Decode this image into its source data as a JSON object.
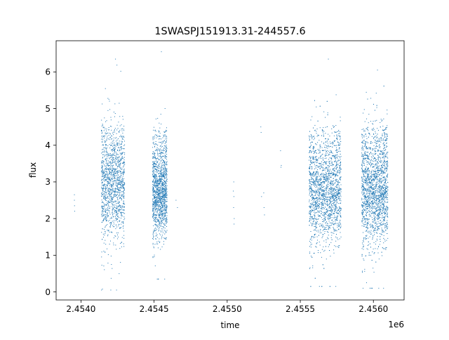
{
  "chart_data": {
    "type": "scatter",
    "title": "1SWASPJ151913.31-244557.6",
    "xlabel": "time",
    "ylabel": "flux",
    "x_offset_label": "1e6",
    "xlim": [
      2453830,
      2456210
    ],
    "ylim": [
      -0.22,
      6.85
    ],
    "x_ticks": [
      2454000,
      2454500,
      2455000,
      2455500,
      2456000
    ],
    "x_tick_labels": [
      "2.4540",
      "2.4545",
      "2.4550",
      "2.4555",
      "2.4560"
    ],
    "y_ticks": [
      0,
      1,
      2,
      3,
      4,
      5,
      6
    ],
    "y_tick_labels": [
      "0",
      "1",
      "2",
      "3",
      "4",
      "5",
      "6"
    ],
    "grid": false,
    "legend": "none",
    "point_color": "#1f77b4",
    "series": [
      {
        "clusters": [
          {
            "x_range": [
              2454140,
              2454300
            ],
            "y_center": 2.9,
            "y_spread": 0.75,
            "y_min": 0.05,
            "y_max": 6.35,
            "density": "high"
          },
          {
            "x_range": [
              2454490,
              2454590
            ],
            "y_center": 2.75,
            "y_spread": 0.6,
            "y_min": 0.35,
            "y_max": 6.55,
            "density": "high"
          },
          {
            "x_range": [
              2455560,
              2455780
            ],
            "y_center": 2.75,
            "y_spread": 0.7,
            "y_min": 0.15,
            "y_max": 6.35,
            "density": "very high"
          },
          {
            "x_range": [
              2455920,
              2456100
            ],
            "y_center": 2.8,
            "y_spread": 0.75,
            "y_min": 0.1,
            "y_max": 6.05,
            "density": "very high"
          }
        ],
        "sparse_points": [
          [
            2453955,
            2.65
          ],
          [
            2453955,
            2.5
          ],
          [
            2453956,
            2.35
          ],
          [
            2453957,
            2.2
          ],
          [
            2454650,
            2.5
          ],
          [
            2454660,
            2.3
          ],
          [
            2455045,
            3.0
          ],
          [
            2455046,
            2.6
          ],
          [
            2455044,
            2.3
          ],
          [
            2455048,
            2.0
          ],
          [
            2455047,
            1.85
          ],
          [
            2455042,
            2.75
          ],
          [
            2455230,
            4.5
          ],
          [
            2455232,
            4.35
          ],
          [
            2455235,
            2.6
          ],
          [
            2455250,
            2.7
          ],
          [
            2455252,
            2.3
          ],
          [
            2455255,
            2.1
          ],
          [
            2455365,
            3.85
          ],
          [
            2455368,
            3.4
          ],
          [
            2455370,
            3.45
          ]
        ]
      }
    ]
  }
}
